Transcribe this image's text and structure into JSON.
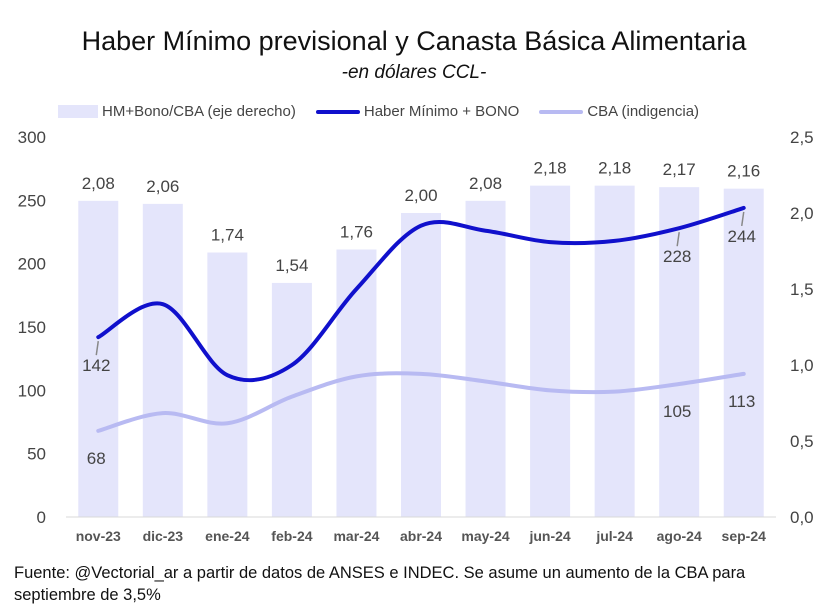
{
  "chart_data": {
    "type": "bar",
    "title": "Haber Mínimo previsional y Canasta Básica Alimentaria",
    "subtitle": "-en dólares CCL-",
    "categories": [
      "nov-23",
      "dic-23",
      "ene-24",
      "feb-24",
      "mar-24",
      "abr-24",
      "may-24",
      "jun-24",
      "jul-24",
      "ago-24",
      "sep-24"
    ],
    "series": [
      {
        "name": "HM+Bono/CBA (eje derecho)",
        "type": "bar",
        "axis": "right",
        "values": [
          2.08,
          2.06,
          1.74,
          1.54,
          1.76,
          2.0,
          2.08,
          2.18,
          2.18,
          2.17,
          2.16
        ],
        "labels": [
          "2,08",
          "2,06",
          "1,74",
          "1,54",
          "1,76",
          "2,00",
          "2,08",
          "2,18",
          "2,18",
          "2,17",
          "2,16"
        ],
        "color": "#e4e5fb"
      },
      {
        "name": "Haber Mínimo + BONO",
        "type": "line",
        "axis": "left",
        "values": [
          142,
          168,
          112,
          120,
          180,
          230,
          226,
          217,
          218,
          228,
          244
        ],
        "labeled_points": {
          "0": "142",
          "9": "228",
          "10": "244"
        },
        "color": "#1010cc"
      },
      {
        "name": "CBA (indigencia)",
        "type": "line",
        "axis": "left",
        "values": [
          68,
          82,
          74,
          95,
          111,
          113,
          107,
          100,
          99,
          105,
          113
        ],
        "labeled_points": {
          "0": "68",
          "9": "105",
          "10": "113"
        },
        "color": "#b8baf2"
      }
    ],
    "y_left": {
      "min": 0,
      "max": 300,
      "ticks": [
        0,
        50,
        100,
        150,
        200,
        250,
        300
      ]
    },
    "y_right": {
      "min": 0,
      "max": 2.5,
      "ticks": [
        "0,0",
        "0,5",
        "1,0",
        "1,5",
        "2,0",
        "2,5"
      ]
    },
    "grid": false,
    "legend_position": "top"
  },
  "source_text": "Fuente: @Vectorial_ar a partir de datos de ANSES e INDEC. Se asume un aumento de la CBA para septiembre de 3,5%"
}
